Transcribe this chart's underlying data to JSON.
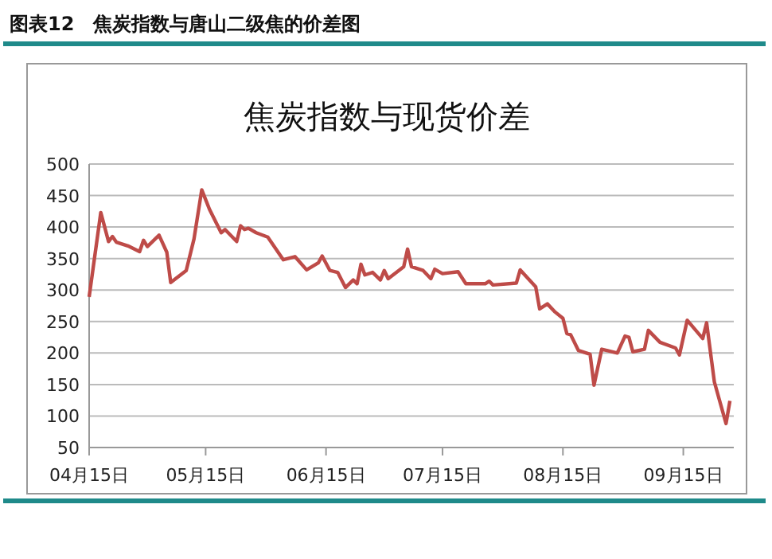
{
  "chart_data": {
    "type": "line",
    "title": "焦炭指数与现货价差",
    "annotations": [
      "图表12　焦炭指数与唐山二级焦的价差图"
    ],
    "x": [
      "--04-15",
      "--04-18",
      "--04-20",
      "--04-21",
      "--04-22",
      "--04-25",
      "--04-28",
      "--04-29",
      "--04-30",
      "--05-03",
      "--05-05",
      "--05-06",
      "--05-10",
      "--05-12",
      "--05-14",
      "--05-16",
      "--05-19",
      "--05-20",
      "--05-23",
      "--05-24",
      "--05-25",
      "--05-26",
      "--05-28",
      "--05-31",
      "--06-04",
      "--06-07",
      "--06-10",
      "--06-13",
      "--06-14",
      "--06-16",
      "--06-18",
      "--06-20",
      "--06-22",
      "--06-23",
      "--06-24",
      "--06-25",
      "--06-27",
      "--06-29",
      "--06-30",
      "--07-01",
      "--07-05",
      "--07-06",
      "--07-07",
      "--07-10",
      "--07-12",
      "--07-13",
      "--07-15",
      "--07-19",
      "--07-21",
      "--07-26",
      "--07-27",
      "--07-28",
      "--08-03",
      "--08-04",
      "--08-08",
      "--08-09",
      "--08-11",
      "--08-13",
      "--08-15",
      "--08-16",
      "--08-17",
      "--08-19",
      "--08-22",
      "--08-23",
      "--08-25",
      "--08-29",
      "--08-31",
      "--09-01",
      "--09-02",
      "--09-05",
      "--09-06",
      "--09-09",
      "--09-13",
      "--09-14",
      "--09-16",
      "--09-20",
      "--09-21",
      "--09-23",
      "--09-26",
      "--09-27"
    ],
    "series": [
      {
        "color": "#be4b48",
        "values": [
          289,
          423,
          377,
          385,
          376,
          370,
          361,
          379,
          369,
          387,
          360,
          312,
          331,
          381,
          459,
          428,
          391,
          396,
          377,
          402,
          396,
          398,
          391,
          384,
          348,
          353,
          332,
          343,
          354,
          331,
          328,
          304,
          316,
          310,
          341,
          324,
          328,
          316,
          331,
          318,
          337,
          365,
          337,
          331,
          318,
          333,
          326,
          329,
          310,
          310,
          314,
          308,
          311,
          332,
          305,
          270,
          278,
          265,
          255,
          231,
          229,
          204,
          198,
          149,
          206,
          200,
          227,
          225,
          202,
          206,
          236,
          217,
          208,
          197,
          252,
          223,
          248,
          154,
          88,
          124
        ]
      }
    ],
    "xlim": [
      "--04-15",
      "--09-28"
    ],
    "xticks": [
      {
        "value": "--04-15",
        "label": "04月15日"
      },
      {
        "value": "--05-15",
        "label": "05月15日"
      },
      {
        "value": "--06-15",
        "label": "06月15日"
      },
      {
        "value": "--07-15",
        "label": "07月15日"
      },
      {
        "value": "--08-15",
        "label": "08月15日"
      },
      {
        "value": "--09-15",
        "label": "09月15日"
      }
    ],
    "ylim": [
      50,
      500
    ],
    "yticks": [
      50,
      100,
      150,
      200,
      250,
      300,
      350,
      400,
      450,
      500
    ],
    "grid": "y",
    "marker": "none",
    "line_style": "solid"
  }
}
